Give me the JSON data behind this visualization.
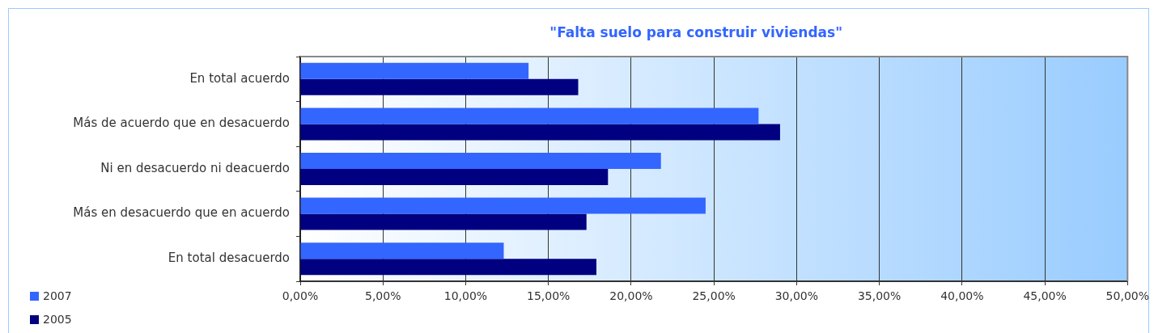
{
  "chart_data": {
    "type": "bar",
    "orientation": "horizontal",
    "title": "\"Falta suelo para construir viviendas\"",
    "categories": [
      "En total acuerdo",
      "Más de acuerdo que en desacuerdo",
      "Ni en desacuerdo ni deacuerdo",
      "Más en desacuerdo que en acuerdo",
      "En total desacuerdo"
    ],
    "series": [
      {
        "name": "2007",
        "color": "#3366ff",
        "values": [
          13.8,
          27.7,
          21.8,
          24.5,
          12.3
        ]
      },
      {
        "name": "2005",
        "color": "#000080",
        "values": [
          16.8,
          29.0,
          18.6,
          17.3,
          17.9
        ]
      }
    ],
    "xlim": [
      0,
      50
    ],
    "xticks": [
      {
        "value": 0,
        "label": "0,00%"
      },
      {
        "value": 5,
        "label": "5,00%"
      },
      {
        "value": 10,
        "label": "10,00%"
      },
      {
        "value": 15,
        "label": "15,00%"
      },
      {
        "value": 20,
        "label": "20,00%"
      },
      {
        "value": 25,
        "label": "25,00%"
      },
      {
        "value": 30,
        "label": "30,00%"
      },
      {
        "value": 35,
        "label": "35,00%"
      },
      {
        "value": 40,
        "label": "40,00%"
      },
      {
        "value": 45,
        "label": "45,00%"
      },
      {
        "value": 50,
        "label": "50,00%"
      }
    ],
    "grid": "x",
    "legend": "bottom left"
  }
}
